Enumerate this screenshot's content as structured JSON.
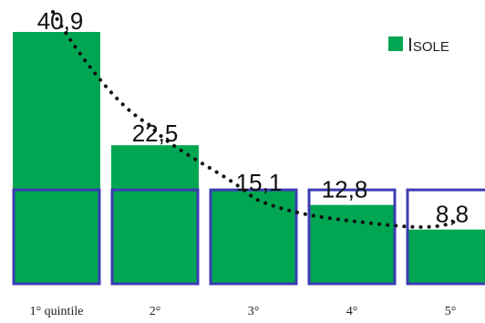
{
  "chart_data": {
    "type": "bar",
    "categories": [
      "1° quintile",
      "2°",
      "3°",
      "4°",
      "5°"
    ],
    "values": [
      40.9,
      22.5,
      15.1,
      12.8,
      8.8
    ],
    "value_labels": [
      "40,9",
      "22,5",
      "15,1",
      "12,8",
      "8,8"
    ],
    "series": [
      {
        "name": "ISOLE",
        "values": [
          40.9,
          22.5,
          15.1,
          12.8,
          8.8
        ]
      }
    ],
    "trendline": {
      "style": "dotted",
      "color": "#111111"
    },
    "legend": {
      "label_first": "I",
      "label_rest": "SOLE",
      "position": "top-right"
    },
    "outline_reference_value": 15.1,
    "ylim": [
      0,
      43
    ],
    "grid": false,
    "colors": {
      "bar": "#00a651",
      "outline": "#3c3cb4",
      "trend": "#111111"
    }
  }
}
